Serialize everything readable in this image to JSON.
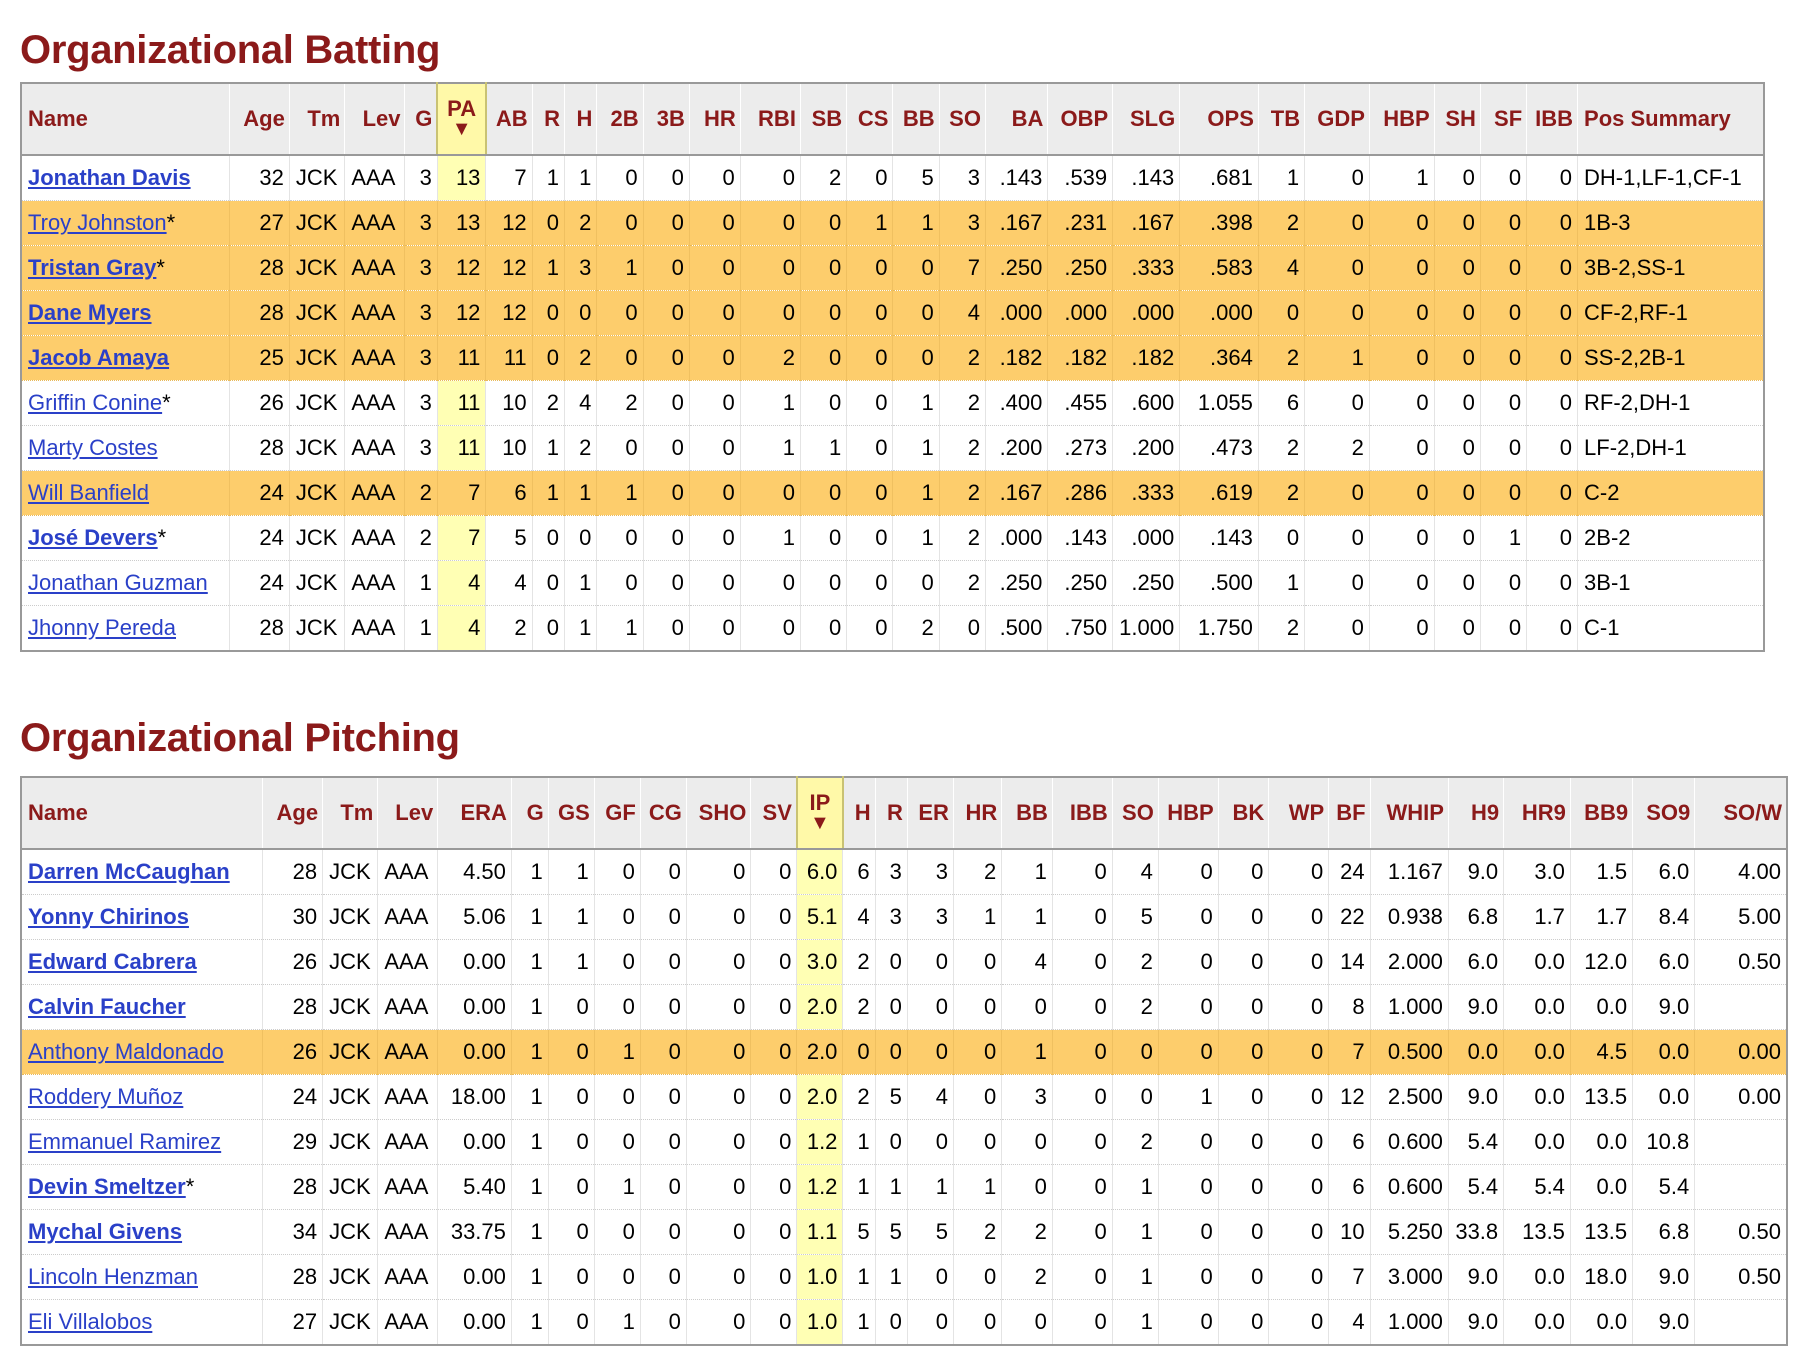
{
  "batting": {
    "title": "Organizational Batting",
    "columns": [
      "Name",
      "Age",
      "Tm",
      "Lev",
      "G",
      "PA",
      "AB",
      "R",
      "H",
      "2B",
      "3B",
      "HR",
      "RBI",
      "SB",
      "CS",
      "BB",
      "SO",
      "BA",
      "OBP",
      "SLG",
      "OPS",
      "TB",
      "GDP",
      "HBP",
      "SH",
      "SF",
      "IBB",
      "Pos Summary"
    ],
    "sort_column": "PA",
    "sort_arrow": "▼",
    "rows": [
      {
        "name": "Jonathan Davis",
        "star": "",
        "bold": true,
        "hl": false,
        "cells": [
          "32",
          "JCK",
          "AAA",
          "3",
          "13",
          "7",
          "1",
          "1",
          "0",
          "0",
          "0",
          "0",
          "2",
          "0",
          "5",
          "3",
          ".143",
          ".539",
          ".143",
          ".681",
          "1",
          "0",
          "1",
          "0",
          "0",
          "0",
          "DH-1,LF-1,CF-1"
        ]
      },
      {
        "name": "Troy Johnston",
        "star": "*",
        "bold": false,
        "hl": true,
        "cells": [
          "27",
          "JCK",
          "AAA",
          "3",
          "13",
          "12",
          "0",
          "2",
          "0",
          "0",
          "0",
          "0",
          "0",
          "1",
          "1",
          "3",
          ".167",
          ".231",
          ".167",
          ".398",
          "2",
          "0",
          "0",
          "0",
          "0",
          "0",
          "1B-3"
        ]
      },
      {
        "name": "Tristan Gray",
        "star": "*",
        "bold": true,
        "hl": true,
        "cells": [
          "28",
          "JCK",
          "AAA",
          "3",
          "12",
          "12",
          "1",
          "3",
          "1",
          "0",
          "0",
          "0",
          "0",
          "0",
          "0",
          "7",
          ".250",
          ".250",
          ".333",
          ".583",
          "4",
          "0",
          "0",
          "0",
          "0",
          "0",
          "3B-2,SS-1"
        ]
      },
      {
        "name": "Dane Myers",
        "star": "",
        "bold": true,
        "hl": true,
        "cells": [
          "28",
          "JCK",
          "AAA",
          "3",
          "12",
          "12",
          "0",
          "0",
          "0",
          "0",
          "0",
          "0",
          "0",
          "0",
          "0",
          "4",
          ".000",
          ".000",
          ".000",
          ".000",
          "0",
          "0",
          "0",
          "0",
          "0",
          "0",
          "CF-2,RF-1"
        ]
      },
      {
        "name": "Jacob Amaya",
        "star": "",
        "bold": true,
        "hl": true,
        "cells": [
          "25",
          "JCK",
          "AAA",
          "3",
          "11",
          "11",
          "0",
          "2",
          "0",
          "0",
          "0",
          "2",
          "0",
          "0",
          "0",
          "2",
          ".182",
          ".182",
          ".182",
          ".364",
          "2",
          "1",
          "0",
          "0",
          "0",
          "0",
          "SS-2,2B-1"
        ]
      },
      {
        "name": "Griffin Conine",
        "star": "*",
        "bold": false,
        "hl": false,
        "cells": [
          "26",
          "JCK",
          "AAA",
          "3",
          "11",
          "10",
          "2",
          "4",
          "2",
          "0",
          "0",
          "1",
          "0",
          "0",
          "1",
          "2",
          ".400",
          ".455",
          ".600",
          "1.055",
          "6",
          "0",
          "0",
          "0",
          "0",
          "0",
          "RF-2,DH-1"
        ]
      },
      {
        "name": "Marty Costes",
        "star": "",
        "bold": false,
        "hl": false,
        "cells": [
          "28",
          "JCK",
          "AAA",
          "3",
          "11",
          "10",
          "1",
          "2",
          "0",
          "0",
          "0",
          "1",
          "1",
          "0",
          "1",
          "2",
          ".200",
          ".273",
          ".200",
          ".473",
          "2",
          "2",
          "0",
          "0",
          "0",
          "0",
          "LF-2,DH-1"
        ]
      },
      {
        "name": "Will Banfield",
        "star": "",
        "bold": false,
        "hl": true,
        "cells": [
          "24",
          "JCK",
          "AAA",
          "2",
          "7",
          "6",
          "1",
          "1",
          "1",
          "0",
          "0",
          "0",
          "0",
          "0",
          "1",
          "2",
          ".167",
          ".286",
          ".333",
          ".619",
          "2",
          "0",
          "0",
          "0",
          "0",
          "0",
          "C-2"
        ]
      },
      {
        "name": "José Devers",
        "star": "*",
        "bold": true,
        "hl": false,
        "cells": [
          "24",
          "JCK",
          "AAA",
          "2",
          "7",
          "5",
          "0",
          "0",
          "0",
          "0",
          "0",
          "1",
          "0",
          "0",
          "1",
          "2",
          ".000",
          ".143",
          ".000",
          ".143",
          "0",
          "0",
          "0",
          "0",
          "1",
          "0",
          "2B-2"
        ]
      },
      {
        "name": "Jonathan Guzman",
        "star": "",
        "bold": false,
        "hl": false,
        "cells": [
          "24",
          "JCK",
          "AAA",
          "1",
          "4",
          "4",
          "0",
          "1",
          "0",
          "0",
          "0",
          "0",
          "0",
          "0",
          "0",
          "2",
          ".250",
          ".250",
          ".250",
          ".500",
          "1",
          "0",
          "0",
          "0",
          "0",
          "0",
          "3B-1"
        ]
      },
      {
        "name": "Jhonny Pereda",
        "star": "",
        "bold": false,
        "hl": false,
        "cells": [
          "28",
          "JCK",
          "AAA",
          "1",
          "4",
          "2",
          "0",
          "1",
          "1",
          "0",
          "0",
          "0",
          "0",
          "0",
          "2",
          "0",
          ".500",
          ".750",
          "1.000",
          "1.750",
          "2",
          "0",
          "0",
          "0",
          "0",
          "0",
          "C-1"
        ]
      }
    ]
  },
  "pitching": {
    "title": "Organizational Pitching",
    "columns": [
      "Name",
      "Age",
      "Tm",
      "Lev",
      "ERA",
      "G",
      "GS",
      "GF",
      "CG",
      "SHO",
      "SV",
      "IP",
      "H",
      "R",
      "ER",
      "HR",
      "BB",
      "IBB",
      "SO",
      "HBP",
      "BK",
      "WP",
      "BF",
      "WHIP",
      "H9",
      "HR9",
      "BB9",
      "SO9",
      "SO/W"
    ],
    "sort_column": "IP",
    "sort_arrow": "▼",
    "rows": [
      {
        "name": "Darren McCaughan",
        "star": "",
        "bold": true,
        "hl": false,
        "cells": [
          "28",
          "JCK",
          "AAA",
          "4.50",
          "1",
          "1",
          "0",
          "0",
          "0",
          "0",
          "6.0",
          "6",
          "3",
          "3",
          "2",
          "1",
          "0",
          "4",
          "0",
          "0",
          "0",
          "24",
          "1.167",
          "9.0",
          "3.0",
          "1.5",
          "6.0",
          "4.00"
        ]
      },
      {
        "name": "Yonny Chirinos",
        "star": "",
        "bold": true,
        "hl": false,
        "cells": [
          "30",
          "JCK",
          "AAA",
          "5.06",
          "1",
          "1",
          "0",
          "0",
          "0",
          "0",
          "5.1",
          "4",
          "3",
          "3",
          "1",
          "1",
          "0",
          "5",
          "0",
          "0",
          "0",
          "22",
          "0.938",
          "6.8",
          "1.7",
          "1.7",
          "8.4",
          "5.00"
        ]
      },
      {
        "name": "Edward Cabrera",
        "star": "",
        "bold": true,
        "hl": false,
        "cells": [
          "26",
          "JCK",
          "AAA",
          "0.00",
          "1",
          "1",
          "0",
          "0",
          "0",
          "0",
          "3.0",
          "2",
          "0",
          "0",
          "0",
          "4",
          "0",
          "2",
          "0",
          "0",
          "0",
          "14",
          "2.000",
          "6.0",
          "0.0",
          "12.0",
          "6.0",
          "0.50"
        ]
      },
      {
        "name": "Calvin Faucher",
        "star": "",
        "bold": true,
        "hl": false,
        "cells": [
          "28",
          "JCK",
          "AAA",
          "0.00",
          "1",
          "0",
          "0",
          "0",
          "0",
          "0",
          "2.0",
          "2",
          "0",
          "0",
          "0",
          "0",
          "0",
          "2",
          "0",
          "0",
          "0",
          "8",
          "1.000",
          "9.0",
          "0.0",
          "0.0",
          "9.0",
          ""
        ]
      },
      {
        "name": "Anthony Maldonado",
        "star": "",
        "bold": false,
        "hl": true,
        "cells": [
          "26",
          "JCK",
          "AAA",
          "0.00",
          "1",
          "0",
          "1",
          "0",
          "0",
          "0",
          "2.0",
          "0",
          "0",
          "0",
          "0",
          "1",
          "0",
          "0",
          "0",
          "0",
          "0",
          "7",
          "0.500",
          "0.0",
          "0.0",
          "4.5",
          "0.0",
          "0.00"
        ]
      },
      {
        "name": "Roddery Muñoz",
        "star": "",
        "bold": false,
        "hl": false,
        "cells": [
          "24",
          "JCK",
          "AAA",
          "18.00",
          "1",
          "0",
          "0",
          "0",
          "0",
          "0",
          "2.0",
          "2",
          "5",
          "4",
          "0",
          "3",
          "0",
          "0",
          "1",
          "0",
          "0",
          "12",
          "2.500",
          "9.0",
          "0.0",
          "13.5",
          "0.0",
          "0.00"
        ]
      },
      {
        "name": "Emmanuel Ramirez",
        "star": "",
        "bold": false,
        "hl": false,
        "cells": [
          "29",
          "JCK",
          "AAA",
          "0.00",
          "1",
          "0",
          "0",
          "0",
          "0",
          "0",
          "1.2",
          "1",
          "0",
          "0",
          "0",
          "0",
          "0",
          "2",
          "0",
          "0",
          "0",
          "6",
          "0.600",
          "5.4",
          "0.0",
          "0.0",
          "10.8",
          ""
        ]
      },
      {
        "name": "Devin Smeltzer",
        "star": "*",
        "bold": true,
        "hl": false,
        "cells": [
          "28",
          "JCK",
          "AAA",
          "5.40",
          "1",
          "0",
          "1",
          "0",
          "0",
          "0",
          "1.2",
          "1",
          "1",
          "1",
          "1",
          "0",
          "0",
          "1",
          "0",
          "0",
          "0",
          "6",
          "0.600",
          "5.4",
          "5.4",
          "0.0",
          "5.4",
          ""
        ]
      },
      {
        "name": "Mychal Givens",
        "star": "",
        "bold": true,
        "hl": false,
        "cells": [
          "34",
          "JCK",
          "AAA",
          "33.75",
          "1",
          "0",
          "0",
          "0",
          "0",
          "0",
          "1.1",
          "5",
          "5",
          "5",
          "2",
          "2",
          "0",
          "1",
          "0",
          "0",
          "0",
          "10",
          "5.250",
          "33.8",
          "13.5",
          "13.5",
          "6.8",
          "0.50"
        ]
      },
      {
        "name": "Lincoln Henzman",
        "star": "",
        "bold": false,
        "hl": false,
        "cells": [
          "28",
          "JCK",
          "AAA",
          "0.00",
          "1",
          "0",
          "0",
          "0",
          "0",
          "0",
          "1.0",
          "1",
          "1",
          "0",
          "0",
          "2",
          "0",
          "1",
          "0",
          "0",
          "0",
          "7",
          "3.000",
          "9.0",
          "0.0",
          "18.0",
          "9.0",
          "0.50"
        ]
      },
      {
        "name": "Eli Villalobos",
        "star": "",
        "bold": false,
        "hl": false,
        "cells": [
          "27",
          "JCK",
          "AAA",
          "0.00",
          "1",
          "0",
          "1",
          "0",
          "0",
          "0",
          "1.0",
          "1",
          "0",
          "0",
          "0",
          "0",
          "0",
          "1",
          "0",
          "0",
          "0",
          "4",
          "1.000",
          "9.0",
          "0.0",
          "0.0",
          "9.0",
          ""
        ]
      }
    ]
  }
}
